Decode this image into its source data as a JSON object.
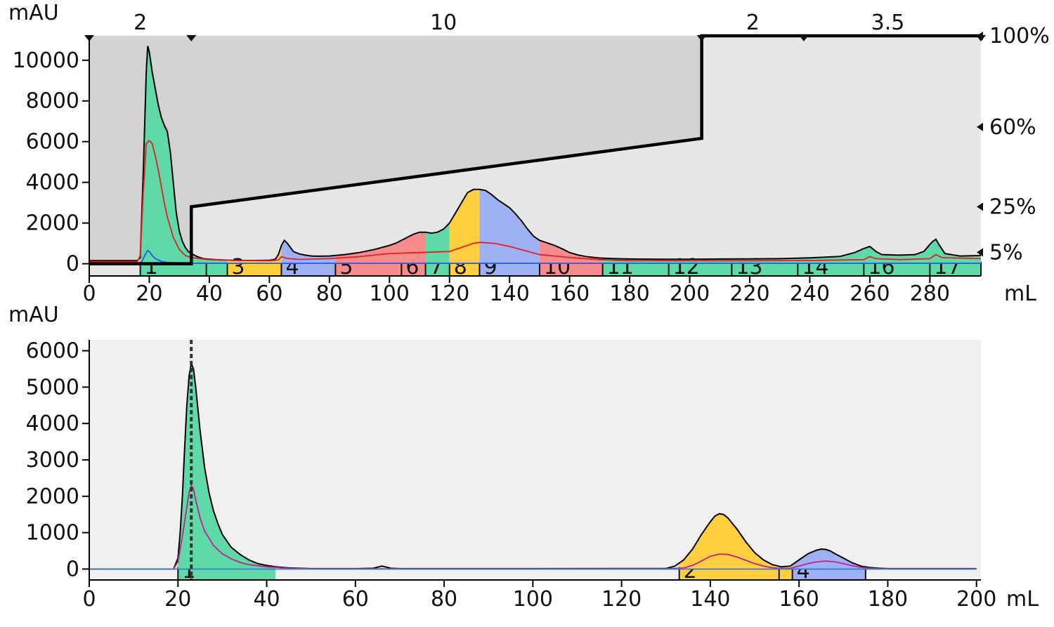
{
  "chart_data": [
    {
      "type": "area",
      "name": "top",
      "ylabel": "mAU",
      "xlabel": "mL",
      "xlim": [
        0,
        297
      ],
      "ylim": [
        -600,
        11200
      ],
      "x_ticks": [
        "0",
        "20",
        "40",
        "60",
        "80",
        "100",
        "120",
        "140",
        "160",
        "180",
        "200",
        "220",
        "240",
        "260",
        "280"
      ],
      "y_ticks": [
        "0",
        "2000",
        "4000",
        "6000",
        "8000",
        "10000"
      ],
      "flow_labels": [
        {
          "x": 17,
          "text": "2"
        },
        {
          "x": 118,
          "text": "10"
        },
        {
          "x": 221,
          "text": "2"
        },
        {
          "x": 266,
          "text": "3.5"
        }
      ],
      "flow_markers_x": [
        0,
        34,
        204,
        238,
        297
      ],
      "percent_labels": [
        {
          "percent": 100,
          "text": "100%"
        },
        {
          "percent": 60,
          "text": "60%"
        },
        {
          "percent": 25,
          "text": "25%"
        },
        {
          "percent": 5,
          "text": "5%"
        }
      ],
      "gradient_percent": {
        "x": [
          0,
          34,
          34,
          204,
          204,
          297
        ],
        "y": [
          0,
          0,
          25,
          55,
          100,
          100
        ]
      },
      "fractions": [
        {
          "label": "1",
          "start": 17,
          "end": 39,
          "color": "#5ed9a7"
        },
        {
          "label": "",
          "start": 39,
          "end": 46,
          "color": "#5ed9a7"
        },
        {
          "label": "3",
          "start": 46,
          "end": 64,
          "color": "#ffcf3f"
        },
        {
          "label": "4",
          "start": 64,
          "end": 82,
          "color": "#9fb1f5"
        },
        {
          "label": "5",
          "start": 82,
          "end": 104,
          "color": "#f78b8b"
        },
        {
          "label": "6",
          "start": 104,
          "end": 112,
          "color": "#f78b8b"
        },
        {
          "label": "7",
          "start": 112,
          "end": 120,
          "color": "#5ed9a7"
        },
        {
          "label": "8",
          "start": 120,
          "end": 130,
          "color": "#ffcf3f"
        },
        {
          "label": "9",
          "start": 130,
          "end": 150,
          "color": "#9fb1f5"
        },
        {
          "label": "10",
          "start": 150,
          "end": 171,
          "color": "#f78b8b"
        },
        {
          "label": "11",
          "start": 171,
          "end": 193,
          "color": "#5ed9a7"
        },
        {
          "label": "12",
          "start": 193,
          "end": 214,
          "color": "#5ed9a7"
        },
        {
          "label": "13",
          "start": 214,
          "end": 236,
          "color": "#5ed9a7"
        },
        {
          "label": "14",
          "start": 236,
          "end": 258,
          "color": "#5ed9a7"
        },
        {
          "label": "16",
          "start": 258,
          "end": 280,
          "color": "#5ed9a7"
        },
        {
          "label": "17",
          "start": 280,
          "end": 297,
          "color": "#5ed9a7"
        }
      ],
      "series": [
        {
          "name": "UV",
          "color": "#000000",
          "x": [
            0,
            16,
            17,
            18,
            19,
            19.5,
            20,
            21,
            22,
            23,
            24,
            25,
            26,
            27,
            28,
            29,
            30,
            31,
            32,
            33,
            34,
            36,
            38,
            40,
            42,
            45,
            50,
            55,
            60,
            62,
            63,
            64,
            65,
            66,
            67,
            68,
            70,
            72,
            74,
            76,
            80,
            85,
            90,
            95,
            100,
            102,
            104,
            106,
            108,
            110,
            112,
            114,
            116,
            118,
            120,
            122,
            124,
            126,
            128,
            130,
            132,
            134,
            136,
            138,
            140,
            142,
            144,
            146,
            148,
            150,
            152,
            155,
            158,
            160,
            163,
            166,
            170,
            175,
            180,
            190,
            200,
            210,
            220,
            230,
            240,
            250,
            255,
            258,
            260,
            262,
            264,
            270,
            275,
            278,
            280,
            281,
            282,
            283,
            285,
            290,
            297
          ],
          "y": [
            150,
            150,
            300,
            4500,
            9500,
            10700,
            10400,
            9400,
            8600,
            7800,
            7200,
            6800,
            6500,
            5500,
            4000,
            2500,
            1600,
            1100,
            800,
            600,
            500,
            350,
            250,
            220,
            200,
            180,
            160,
            160,
            170,
            220,
            450,
            900,
            1150,
            1000,
            800,
            600,
            480,
            420,
            380,
            370,
            380,
            450,
            550,
            700,
            900,
            1000,
            1150,
            1300,
            1450,
            1550,
            1550,
            1500,
            1550,
            1700,
            2000,
            2500,
            3000,
            3500,
            3650,
            3650,
            3600,
            3400,
            3150,
            2950,
            2750,
            2450,
            2100,
            1700,
            1350,
            1150,
            1050,
            900,
            700,
            550,
            420,
            340,
            280,
            250,
            230,
            220,
            220,
            230,
            240,
            250,
            290,
            360,
            550,
            750,
            850,
            600,
            450,
            420,
            450,
            600,
            950,
            1100,
            1200,
            950,
            500,
            380,
            400
          ]
        },
        {
          "name": "Red trace",
          "color": "#e81e1e",
          "x": [
            0,
            16,
            17,
            18,
            19,
            20,
            21,
            22,
            23,
            24,
            25,
            26,
            28,
            30,
            32,
            34,
            40,
            50,
            60,
            63,
            64,
            66,
            68,
            70,
            80,
            90,
            100,
            110,
            120,
            125,
            128,
            130,
            135,
            140,
            145,
            150,
            155,
            160,
            170,
            180,
            200,
            220,
            240,
            258,
            260,
            262,
            270,
            280,
            282,
            284,
            297
          ],
          "y": [
            100,
            100,
            400,
            3500,
            5900,
            6050,
            5900,
            5300,
            4600,
            3800,
            3000,
            2300,
            1300,
            700,
            400,
            300,
            200,
            160,
            150,
            180,
            350,
            260,
            230,
            210,
            250,
            350,
            500,
            550,
            600,
            850,
            1000,
            1050,
            1000,
            850,
            650,
            450,
            380,
            300,
            200,
            150,
            150,
            150,
            160,
            200,
            350,
            250,
            200,
            250,
            450,
            300,
            250
          ]
        },
        {
          "name": "Blue trace",
          "color": "#2255ff",
          "x": [
            0,
            17,
            18,
            19,
            19.5,
            20,
            21,
            22,
            24,
            26,
            30,
            40,
            60,
            80,
            100,
            150,
            200,
            297
          ],
          "y": [
            0,
            0,
            250,
            550,
            650,
            600,
            400,
            250,
            120,
            60,
            30,
            20,
            20,
            20,
            20,
            20,
            20,
            20
          ]
        }
      ]
    },
    {
      "type": "area",
      "name": "bottom",
      "ylabel": "mAU",
      "xlabel": "mL",
      "xlim": [
        0,
        201
      ],
      "ylim": [
        -300,
        6300
      ],
      "x_ticks": [
        "0",
        "20",
        "40",
        "60",
        "80",
        "100",
        "120",
        "140",
        "160",
        "180",
        "200"
      ],
      "y_ticks": [
        "0",
        "1000",
        "2000",
        "3000",
        "4000",
        "5000",
        "6000"
      ],
      "marker_x": 23,
      "fractions": [
        {
          "label": "1",
          "start": 20,
          "end": 42,
          "color": "#5ed9a7"
        },
        {
          "label": "2",
          "start": 133,
          "end": 155.5,
          "color": "#ffcf3f"
        },
        {
          "label": "",
          "start": 155.5,
          "end": 158.5,
          "color": "#ffcf3f"
        },
        {
          "label": "4",
          "start": 158.5,
          "end": 175,
          "color": "#9fb1f5"
        }
      ],
      "series": [
        {
          "name": "UV",
          "color": "#000000",
          "x": [
            0,
            19,
            20,
            20.5,
            21,
            21.5,
            22,
            22.5,
            23,
            23.5,
            24,
            25,
            26,
            27,
            28,
            29,
            30,
            32,
            34,
            36,
            38,
            40,
            42,
            45,
            50,
            60,
            64,
            66,
            68,
            70,
            100,
            130,
            132,
            134,
            136,
            138,
            140,
            141,
            142,
            143,
            144,
            146,
            148,
            150,
            152,
            154,
            156,
            158,
            160,
            162,
            164,
            165,
            166,
            167,
            168,
            170,
            172,
            174,
            176,
            178,
            180,
            190,
            200
          ],
          "y": [
            0,
            0,
            300,
            1000,
            2000,
            3300,
            4500,
            5300,
            5650,
            5500,
            5000,
            3800,
            2800,
            2100,
            1600,
            1250,
            950,
            600,
            400,
            250,
            150,
            100,
            60,
            30,
            10,
            10,
            20,
            80,
            20,
            10,
            10,
            15,
            80,
            250,
            550,
            950,
            1300,
            1450,
            1520,
            1500,
            1400,
            1100,
            750,
            450,
            250,
            120,
            60,
            80,
            250,
            420,
            520,
            550,
            540,
            500,
            430,
            300,
            170,
            80,
            40,
            20,
            10,
            10,
            10
          ]
        },
        {
          "name": "Magenta trace",
          "color": "#c4208a",
          "x": [
            0,
            19,
            20,
            21,
            22,
            22.5,
            23,
            23.5,
            24,
            25,
            26,
            28,
            30,
            32,
            34,
            36,
            40,
            45,
            50,
            100,
            130,
            134,
            136,
            138,
            140,
            142,
            144,
            146,
            148,
            150,
            152,
            154,
            156,
            158,
            160,
            162,
            164,
            166,
            168,
            170,
            172,
            174,
            176,
            178,
            180,
            200
          ],
          "y": [
            0,
            0,
            200,
            900,
            1700,
            2100,
            2300,
            2200,
            1900,
            1400,
            1050,
            650,
            420,
            280,
            180,
            120,
            60,
            20,
            5,
            5,
            5,
            30,
            100,
            220,
            350,
            410,
            400,
            330,
            240,
            150,
            80,
            35,
            15,
            20,
            80,
            150,
            200,
            220,
            200,
            150,
            90,
            45,
            20,
            8,
            5,
            5
          ]
        },
        {
          "name": "Blue trace",
          "color": "#3a7bd5",
          "x": [
            0,
            200
          ],
          "y": [
            0,
            0
          ]
        }
      ]
    }
  ]
}
